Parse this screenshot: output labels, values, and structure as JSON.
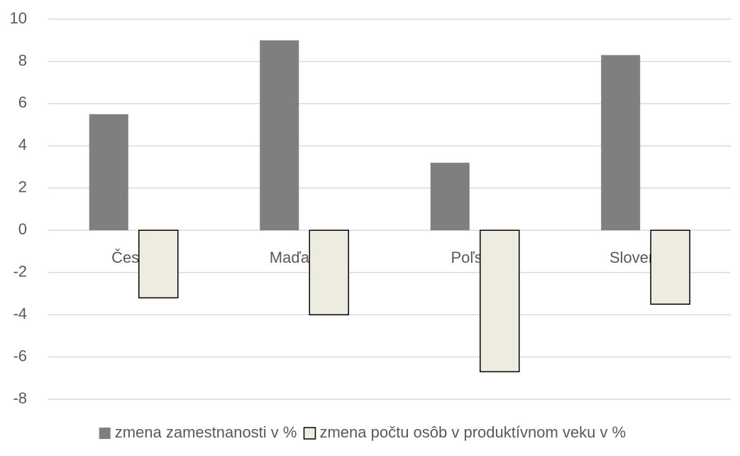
{
  "chart_data": {
    "type": "bar",
    "categories": [
      "Česko",
      "Maďarsko",
      "Poľsko",
      "Slovensko"
    ],
    "series": [
      {
        "name": "zmena zamestnanosti v %",
        "color": "#7f7f7f",
        "values": [
          5.5,
          9.0,
          3.2,
          8.3
        ]
      },
      {
        "name": "zmena počtu osôb v produktívnom veku v %",
        "color": "#eeece1",
        "values": [
          -3.2,
          -4.0,
          -6.7,
          -3.5
        ]
      }
    ],
    "ylim": [
      -8,
      10
    ],
    "yticks": [
      -8,
      -6,
      -4,
      -2,
      0,
      2,
      4,
      6,
      8,
      10
    ],
    "grid": true,
    "legend": "bottom"
  }
}
